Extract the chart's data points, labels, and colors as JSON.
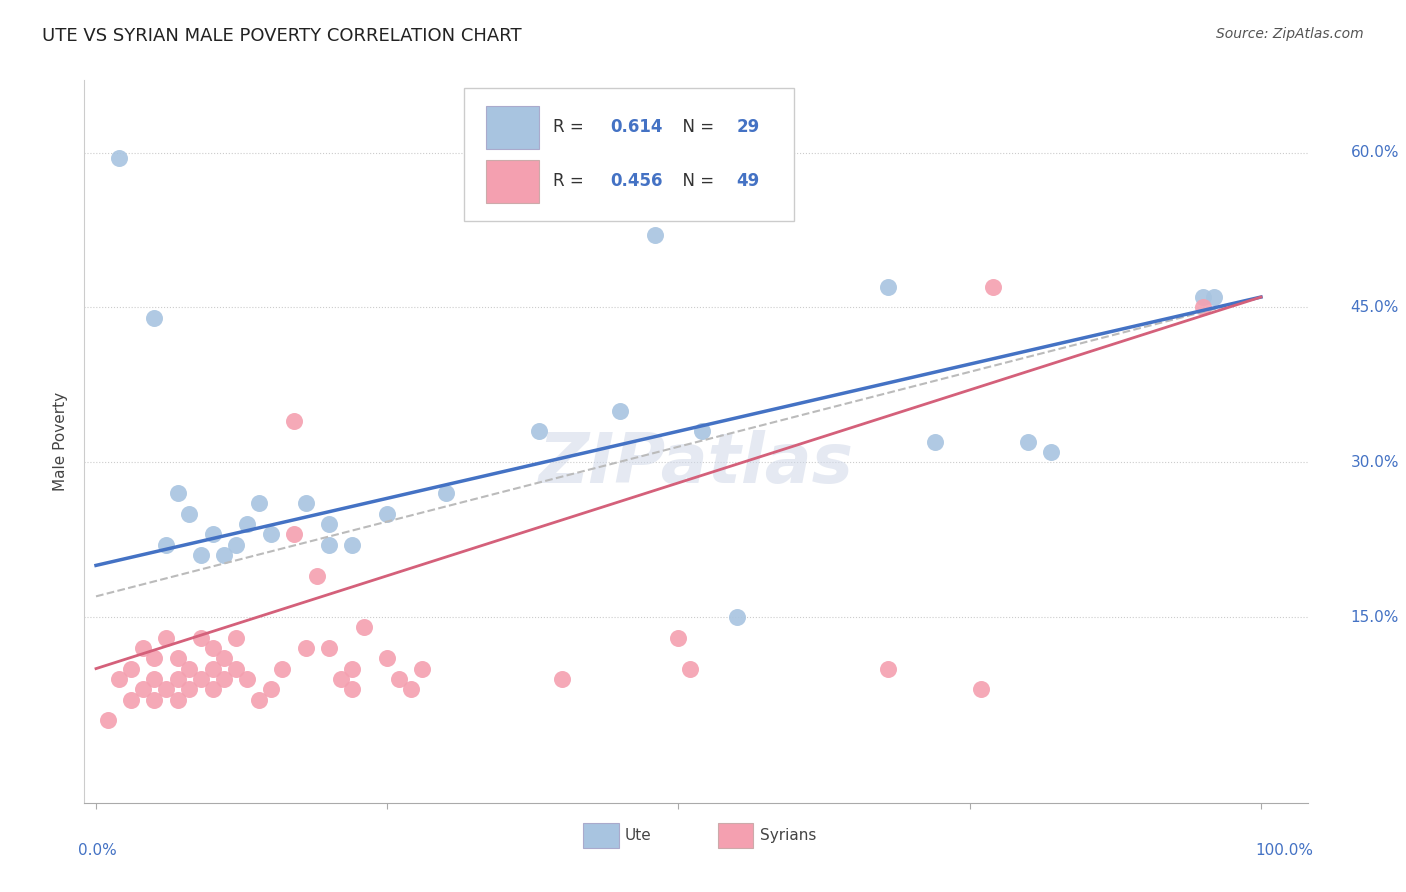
{
  "title": "UTE VS SYRIAN MALE POVERTY CORRELATION CHART",
  "source": "Source: ZipAtlas.com",
  "ylabel": "Male Poverty",
  "ute_R": "0.614",
  "ute_N": "29",
  "syrian_R": "0.456",
  "syrian_N": "49",
  "ute_color": "#a8c4e0",
  "ute_line_color": "#4472c4",
  "syrian_color": "#f4a0b0",
  "syrian_line_color": "#d4607a",
  "dashed_line_color": "#cccccc",
  "ute_points_x": [
    0.02,
    0.48,
    0.05,
    0.07,
    0.08,
    0.1,
    0.12,
    0.13,
    0.14,
    0.18,
    0.2,
    0.22,
    0.38,
    0.68,
    0.8,
    0.95,
    0.09,
    0.25,
    0.52,
    0.82,
    0.96,
    0.06,
    0.3,
    0.55,
    0.72,
    0.15,
    0.11,
    0.2,
    0.45
  ],
  "ute_points_y": [
    0.595,
    0.52,
    0.44,
    0.27,
    0.25,
    0.23,
    0.22,
    0.24,
    0.26,
    0.26,
    0.24,
    0.22,
    0.33,
    0.47,
    0.32,
    0.46,
    0.21,
    0.25,
    0.33,
    0.31,
    0.46,
    0.22,
    0.27,
    0.15,
    0.32,
    0.23,
    0.21,
    0.22,
    0.35
  ],
  "syrian_points_x": [
    0.01,
    0.02,
    0.03,
    0.03,
    0.04,
    0.04,
    0.05,
    0.05,
    0.05,
    0.06,
    0.06,
    0.07,
    0.07,
    0.07,
    0.08,
    0.08,
    0.09,
    0.09,
    0.1,
    0.1,
    0.1,
    0.11,
    0.11,
    0.12,
    0.12,
    0.13,
    0.14,
    0.15,
    0.16,
    0.17,
    0.2,
    0.21,
    0.22,
    0.22,
    0.25,
    0.26,
    0.27,
    0.28,
    0.5,
    0.51,
    0.68,
    0.76,
    0.77,
    0.95,
    0.17,
    0.18,
    0.19,
    0.23,
    0.4
  ],
  "syrian_points_y": [
    0.05,
    0.09,
    0.07,
    0.1,
    0.12,
    0.08,
    0.07,
    0.09,
    0.11,
    0.08,
    0.13,
    0.07,
    0.09,
    0.11,
    0.08,
    0.1,
    0.09,
    0.13,
    0.08,
    0.1,
    0.12,
    0.09,
    0.11,
    0.1,
    0.13,
    0.09,
    0.07,
    0.08,
    0.1,
    0.34,
    0.12,
    0.09,
    0.08,
    0.1,
    0.11,
    0.09,
    0.08,
    0.1,
    0.13,
    0.1,
    0.1,
    0.08,
    0.47,
    0.45,
    0.23,
    0.12,
    0.19,
    0.14,
    0.09
  ]
}
